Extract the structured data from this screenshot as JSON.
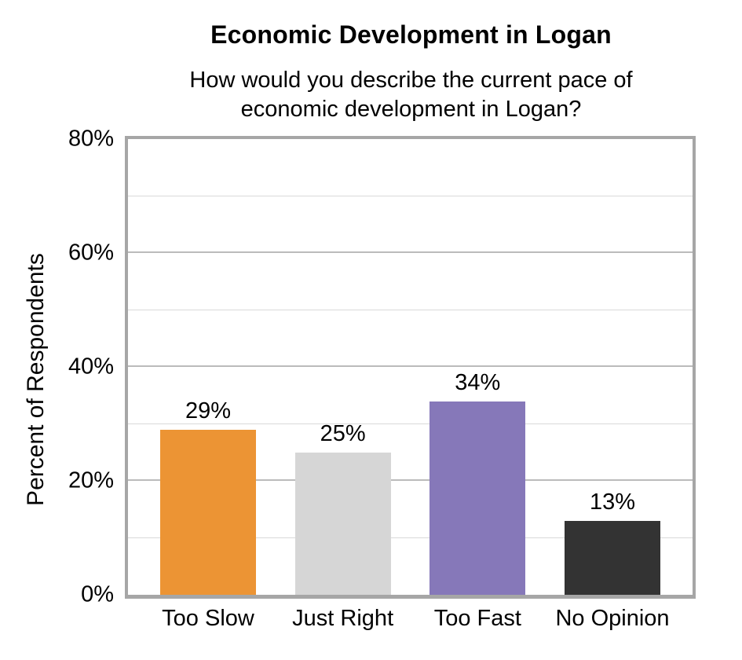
{
  "chart_data": {
    "type": "bar",
    "title": "Economic Development in Logan",
    "subtitle_lines": [
      "How would you describe the current pace of",
      "economic development in Logan?"
    ],
    "categories": [
      "Too Slow",
      "Just Right",
      "Too Fast",
      "No Opinion"
    ],
    "values": [
      29,
      25,
      34,
      13
    ],
    "value_labels": [
      "29%",
      "25%",
      "34%",
      "13%"
    ],
    "bar_colors": [
      "#EC9434",
      "#D6D6D6",
      "#8678B9",
      "#333333"
    ],
    "xlabel": "",
    "ylabel": "Percent of Respondents",
    "ylim": [
      0,
      80
    ],
    "yticks": [
      {
        "label": "0%",
        "value": 0
      },
      {
        "label": "20%",
        "value": 20
      },
      {
        "label": "40%",
        "value": 40
      },
      {
        "label": "60%",
        "value": 60
      },
      {
        "label": "80%",
        "value": 80
      }
    ],
    "grid_minor_step": 10,
    "grid_major_step": 20,
    "grid": "horizontal",
    "legend": "none",
    "colors": {
      "background": "#FFFFFF",
      "text": "#000000",
      "axis_border": "#A6A6A6",
      "grid_major": "#BBBBBB",
      "grid_minor": "#D9D9D9"
    }
  }
}
